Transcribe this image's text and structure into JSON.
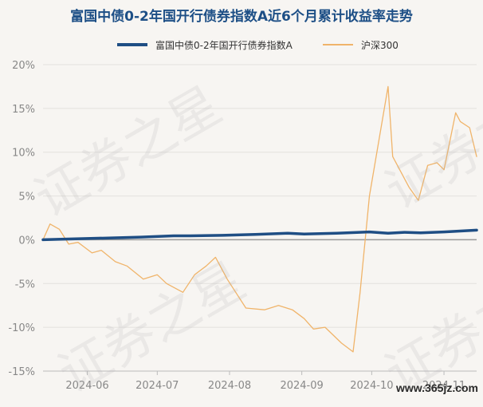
{
  "title": "富国中债0-2年国开行债券指数A近6个月累计收益率走势",
  "watermark": "证券之星",
  "site": "www.365jz.com",
  "colors": {
    "fund": "#1f4e84",
    "index": "#f0b46a",
    "zero": "#999999",
    "grid": "#e3e1dd"
  },
  "chart_data": {
    "type": "line",
    "ylabel": "",
    "xlabel": "",
    "ylim": [
      -15,
      20
    ],
    "yticks": [
      "20%",
      "15%",
      "10%",
      "5%",
      "0%",
      "-5%",
      "-10%",
      "-15%"
    ],
    "ytick_values": [
      20,
      15,
      10,
      5,
      0,
      -5,
      -10,
      -15
    ],
    "xticks": [
      "2024-06",
      "2024-07",
      "2024-08",
      "2024-09",
      "2024-10",
      "2024-11"
    ],
    "xtick_dates": [
      "2024-06-01",
      "2024-07-01",
      "2024-08-01",
      "2024-09-01",
      "2024-10-01",
      "2024-11-01"
    ],
    "xlim": [
      "2024-05-13",
      "2024-11-15"
    ],
    "grid": "horizontal",
    "legend_position": "top",
    "series": [
      {
        "name": "富国中债0-2年国开行债券指数A",
        "x": [
          "2024-05-13",
          "2024-05-27",
          "2024-06-10",
          "2024-06-24",
          "2024-07-08",
          "2024-07-15",
          "2024-07-29",
          "2024-08-12",
          "2024-08-26",
          "2024-09-02",
          "2024-09-16",
          "2024-09-30",
          "2024-10-08",
          "2024-10-15",
          "2024-10-22",
          "2024-11-01",
          "2024-11-15"
        ],
        "values": [
          0.0,
          0.1,
          0.2,
          0.3,
          0.45,
          0.45,
          0.5,
          0.6,
          0.75,
          0.65,
          0.75,
          0.9,
          0.75,
          0.85,
          0.8,
          0.9,
          1.1
        ]
      },
      {
        "name": "沪深300",
        "x": [
          "2024-05-13",
          "2024-05-16",
          "2024-05-20",
          "2024-05-24",
          "2024-05-28",
          "2024-06-03",
          "2024-06-07",
          "2024-06-13",
          "2024-06-18",
          "2024-06-25",
          "2024-07-01",
          "2024-07-05",
          "2024-07-12",
          "2024-07-17",
          "2024-07-22",
          "2024-07-26",
          "2024-07-31",
          "2024-08-08",
          "2024-08-16",
          "2024-08-22",
          "2024-08-28",
          "2024-09-02",
          "2024-09-06",
          "2024-09-11",
          "2024-09-18",
          "2024-09-23",
          "2024-09-26",
          "2024-09-30",
          "2024-10-08",
          "2024-10-10",
          "2024-10-14",
          "2024-10-17",
          "2024-10-21",
          "2024-10-25",
          "2024-10-29",
          "2024-11-01",
          "2024-11-06",
          "2024-11-08",
          "2024-11-12",
          "2024-11-15"
        ],
        "values": [
          0.0,
          1.8,
          1.2,
          -0.5,
          -0.3,
          -1.5,
          -1.2,
          -2.5,
          -3.0,
          -4.5,
          -4.0,
          -5.0,
          -6.0,
          -4.0,
          -3.0,
          -2.0,
          -4.5,
          -7.8,
          -8.0,
          -7.5,
          -8.0,
          -9.0,
          -10.2,
          -10.0,
          -11.8,
          -12.8,
          -6.0,
          5.0,
          17.5,
          9.5,
          7.5,
          6.0,
          4.5,
          8.5,
          8.8,
          8.0,
          14.5,
          13.5,
          12.8,
          9.5
        ]
      }
    ]
  }
}
